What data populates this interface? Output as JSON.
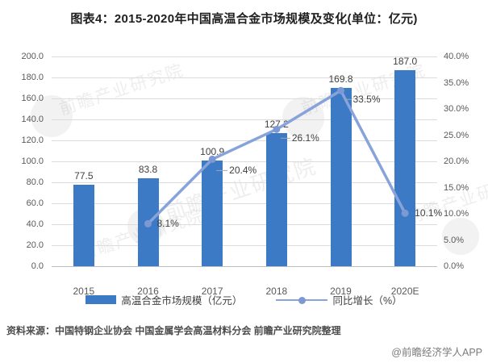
{
  "title": "图表4：2015-2020年中国高温合金市场规模及变化(单位：亿元)",
  "source_note": "资料来源：中国特钢企业协会 中国金属学会高温材料分会 前瞻产业研究院整理",
  "credit": "@前瞻经济学人APP",
  "watermark_text": "前瞻产业研究院",
  "colors": {
    "bar": "#3d7ac6",
    "line": "#87a3da",
    "marker": "#7c99d4",
    "grid": "#dcdcdc",
    "baseline": "#bfbfbf",
    "axis_text": "#595959",
    "label_text": "#404040",
    "title_text": "#1f1f1f"
  },
  "chart_data": {
    "type": "bar",
    "subtype": "bar-and-line-combo",
    "categories": [
      "2015",
      "2016",
      "2017",
      "2018",
      "2019",
      "2020E"
    ],
    "series": [
      {
        "name": "高温合金市场规模（亿元）",
        "type": "bar",
        "axis": "left",
        "values": [
          77.5,
          83.8,
          100.9,
          127.2,
          169.8,
          187.0
        ],
        "labels": [
          "77.5",
          "83.8",
          "100.9",
          "127.2",
          "169.8",
          "187.0"
        ]
      },
      {
        "name": "同比增长（%）",
        "type": "line",
        "axis": "right",
        "values": [
          null,
          8.1,
          20.4,
          26.1,
          33.5,
          10.1
        ],
        "labels": [
          null,
          "8.1%",
          "20.4%",
          "26.1%",
          "33.5%",
          "10.1%"
        ]
      }
    ],
    "left_axis": {
      "min": 0,
      "max": 200,
      "step": 20,
      "ticks": [
        "200.0",
        "180.0",
        "160.0",
        "140.0",
        "120.0",
        "100.0",
        "80.0",
        "60.0",
        "40.0",
        "20.0",
        "0.0"
      ]
    },
    "right_axis": {
      "min": 0,
      "max": 40,
      "step": 5,
      "ticks": [
        "40.0%",
        "35.0%",
        "30.0%",
        "25.0%",
        "20.0%",
        "15.0%",
        "10.0%",
        "5.0%",
        "0.0%"
      ]
    },
    "grid": true,
    "legend_position": "bottom"
  }
}
